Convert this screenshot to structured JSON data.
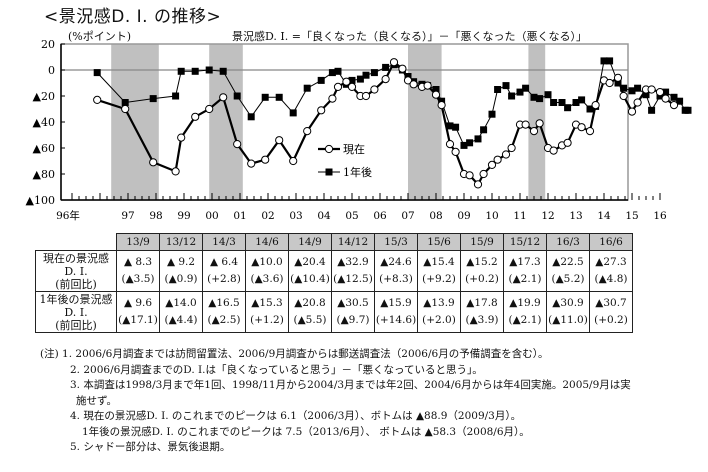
{
  "title": "<景況感D. I. の推移>",
  "unit_label": "(%ポイント)",
  "formula": "景況感D. I. =「良くなった（良くなる）」－「悪くなった（悪くなる）」",
  "legend": {
    "current": "現在",
    "future": "1年後"
  },
  "chart_data": {
    "type": "line",
    "title": "<景況感D. I. の推移>",
    "ylabel": "(%ポイント)",
    "xlabel": "",
    "ylim": [
      -100,
      20
    ],
    "yticks": [
      "20",
      "0",
      "▲20",
      "▲40",
      "▲60",
      "▲80",
      "▲100"
    ],
    "ytick_values": [
      20,
      0,
      -20,
      -40,
      -60,
      -80,
      -100
    ],
    "xticks": [
      "96年",
      "97",
      "98",
      "99",
      "00",
      "01",
      "02",
      "03",
      "04",
      "05",
      "06",
      "07",
      "08",
      "09",
      "10",
      "11",
      "12",
      "13",
      "14",
      "15",
      "16"
    ],
    "shaded_recessions": [
      [
        1997.4,
        1999.1
      ],
      [
        2000.9,
        2002.1
      ],
      [
        2008.0,
        2009.2
      ],
      [
        2012.3,
        2012.9
      ]
    ],
    "legend_position": "center",
    "grid": false,
    "series": [
      {
        "name": "現在",
        "marker": "open-circle",
        "points": [
          [
            1995.9,
            -23
          ],
          [
            1996.9,
            -30
          ],
          [
            1997.9,
            -71
          ],
          [
            1998.7,
            -78
          ],
          [
            1998.9,
            -52
          ],
          [
            1999.4,
            -36
          ],
          [
            1999.9,
            -30
          ],
          [
            2000.4,
            -21
          ],
          [
            2000.9,
            -57
          ],
          [
            2001.4,
            -72
          ],
          [
            2001.9,
            -69
          ],
          [
            2002.4,
            -54
          ],
          [
            2002.9,
            -70
          ],
          [
            2003.4,
            -47
          ],
          [
            2003.9,
            -31
          ],
          [
            2004.3,
            -22
          ],
          [
            2004.5,
            -13
          ],
          [
            2004.8,
            -9
          ],
          [
            2005.0,
            -13
          ],
          [
            2005.3,
            -20
          ],
          [
            2005.5,
            -20
          ],
          [
            2005.8,
            -15
          ],
          [
            2006.2,
            -7
          ],
          [
            2006.5,
            6
          ],
          [
            2006.8,
            1
          ],
          [
            2007.0,
            -8
          ],
          [
            2007.2,
            -11
          ],
          [
            2007.5,
            -13
          ],
          [
            2007.7,
            -12
          ],
          [
            2008.0,
            -19
          ],
          [
            2008.2,
            -27
          ],
          [
            2008.5,
            -57
          ],
          [
            2008.7,
            -63
          ],
          [
            2009.0,
            -80
          ],
          [
            2009.2,
            -81
          ],
          [
            2009.5,
            -88
          ],
          [
            2009.7,
            -80
          ],
          [
            2010.0,
            -73
          ],
          [
            2010.2,
            -69
          ],
          [
            2010.5,
            -65
          ],
          [
            2010.7,
            -60
          ],
          [
            2011.0,
            -42
          ],
          [
            2011.2,
            -42
          ],
          [
            2011.5,
            -47
          ],
          [
            2011.7,
            -41
          ],
          [
            2012.0,
            -60
          ],
          [
            2012.2,
            -62
          ],
          [
            2012.5,
            -58
          ],
          [
            2012.7,
            -56
          ],
          [
            2013.0,
            -42
          ],
          [
            2013.2,
            -44
          ],
          [
            2013.5,
            -47
          ],
          [
            2013.7,
            -27
          ],
          [
            2014.0,
            -8
          ],
          [
            2014.2,
            -10
          ],
          [
            2014.5,
            -6
          ],
          [
            2014.7,
            -20
          ],
          [
            2015.0,
            -32
          ],
          [
            2015.2,
            -25
          ],
          [
            2015.5,
            -15
          ],
          [
            2015.7,
            -15
          ],
          [
            2016.0,
            -17
          ],
          [
            2016.2,
            -22
          ],
          [
            2016.5,
            -27
          ]
        ]
      },
      {
        "name": "1年後",
        "marker": "filled-square",
        "points": [
          [
            1995.9,
            -2
          ],
          [
            1996.9,
            -25
          ],
          [
            1997.9,
            -22
          ],
          [
            1998.7,
            -20
          ],
          [
            1998.9,
            -1
          ],
          [
            1999.4,
            -1
          ],
          [
            1999.9,
            0
          ],
          [
            2000.4,
            -1
          ],
          [
            2000.9,
            -20
          ],
          [
            2001.4,
            -36
          ],
          [
            2001.9,
            -21
          ],
          [
            2002.4,
            -21
          ],
          [
            2002.9,
            -33
          ],
          [
            2003.4,
            -14
          ],
          [
            2003.9,
            -8
          ],
          [
            2004.3,
            -2
          ],
          [
            2004.5,
            -1
          ],
          [
            2004.8,
            -11
          ],
          [
            2005.0,
            -8
          ],
          [
            2005.3,
            -7
          ],
          [
            2005.5,
            -4
          ],
          [
            2005.8,
            -2
          ],
          [
            2006.2,
            2
          ],
          [
            2006.5,
            4
          ],
          [
            2006.8,
            0
          ],
          [
            2007.0,
            -5
          ],
          [
            2007.2,
            -9
          ],
          [
            2007.5,
            -11
          ],
          [
            2007.7,
            -12
          ],
          [
            2008.0,
            -15
          ],
          [
            2008.2,
            -24
          ],
          [
            2008.5,
            -43
          ],
          [
            2008.7,
            -44
          ],
          [
            2009.0,
            -58
          ],
          [
            2009.2,
            -56
          ],
          [
            2009.5,
            -53
          ],
          [
            2009.7,
            -46
          ],
          [
            2010.0,
            -34
          ],
          [
            2010.2,
            -15
          ],
          [
            2010.5,
            -12
          ],
          [
            2010.7,
            -20
          ],
          [
            2011.0,
            -17
          ],
          [
            2011.2,
            -14
          ],
          [
            2011.5,
            -21
          ],
          [
            2011.7,
            -22
          ],
          [
            2012.0,
            -19
          ],
          [
            2012.2,
            -25
          ],
          [
            2012.5,
            -25
          ],
          [
            2012.7,
            -29
          ],
          [
            2013.0,
            -25
          ],
          [
            2013.2,
            -23
          ],
          [
            2013.5,
            -30
          ],
          [
            2013.7,
            -28
          ],
          [
            2014.0,
            7
          ],
          [
            2014.2,
            7
          ],
          [
            2014.5,
            -10
          ],
          [
            2014.7,
            -14
          ],
          [
            2015.0,
            -16
          ],
          [
            2015.2,
            -14
          ],
          [
            2015.5,
            -19
          ],
          [
            2015.7,
            -31
          ],
          [
            2016.0,
            -20
          ],
          [
            2016.2,
            -17
          ],
          [
            2016.5,
            -21
          ],
          [
            2016.7,
            -24
          ],
          [
            2016.9,
            -31
          ],
          [
            2017.0,
            -31
          ]
        ]
      }
    ]
  },
  "table": {
    "columns": [
      "13/9",
      "13/12",
      "14/3",
      "14/6",
      "14/9",
      "14/12",
      "15/3",
      "15/6",
      "15/9",
      "15/12",
      "16/3",
      "16/6"
    ],
    "rows": [
      {
        "label": [
          "現在の景況感",
          "D. I.",
          "(前回比)"
        ],
        "values": [
          "▲ 8.3",
          "▲ 9.2",
          "▲ 6.4",
          "▲10.0",
          "▲20.4",
          "▲32.9",
          "▲24.6",
          "▲15.4",
          "▲15.2",
          "▲17.3",
          "▲22.5",
          "▲27.3"
        ],
        "changes": [
          "(▲3.5)",
          "(▲0.9)",
          "(+2.8)",
          "(▲3.6)",
          "(▲10.4)",
          "(▲12.5)",
          "(+8.3)",
          "(+9.2)",
          "(+0.2)",
          "(▲2.1)",
          "(▲5.2)",
          "(▲4.8)"
        ]
      },
      {
        "label": [
          "1年後の景況感",
          "D. I.",
          "(前回比)"
        ],
        "values": [
          "▲ 9.6",
          "▲14.0",
          "▲16.5",
          "▲15.3",
          "▲20.8",
          "▲30.5",
          "▲15.9",
          "▲13.9",
          "▲17.8",
          "▲19.9",
          "▲30.9",
          "▲30.7"
        ],
        "changes": [
          "(▲17.1)",
          "(▲4.4)",
          "(▲2.5)",
          "(+1.2)",
          "(▲5.5)",
          "(▲9.7)",
          "(+14.6)",
          "(+2.0)",
          "(▲3.9)",
          "(▲2.1)",
          "(▲11.0)",
          "(+0.2)"
        ]
      }
    ]
  },
  "notes": {
    "n1": "(注) 1. 2006/6月調査までは訪問留置法、2006/9月調査からは郵送調査法（2006/6月の予備調査を含む）。",
    "n2": "2. 2006/6月調査までのD. I.は「良くなっていると思う」－「悪くなっていると思う」。",
    "n3a": "3. 本調査は1998/3月まで年1回、1998/11月から2004/3月までは年2回、2004/6月からは年4回実施。2005/9月は実",
    "n3b": "施せず。",
    "n4a": "4. 現在の景況感D. I. のこれまでのピークは 6.1（2006/3月）、ボトムは ▲88.9（2009/3月）。",
    "n4b": "1年後の景況感D. I. のこれまでのピークは 7.5（2013/6月）、 ボトムは ▲58.3（2008/6月）。",
    "n5": "5. シャドー部分は、景気後退期。"
  }
}
